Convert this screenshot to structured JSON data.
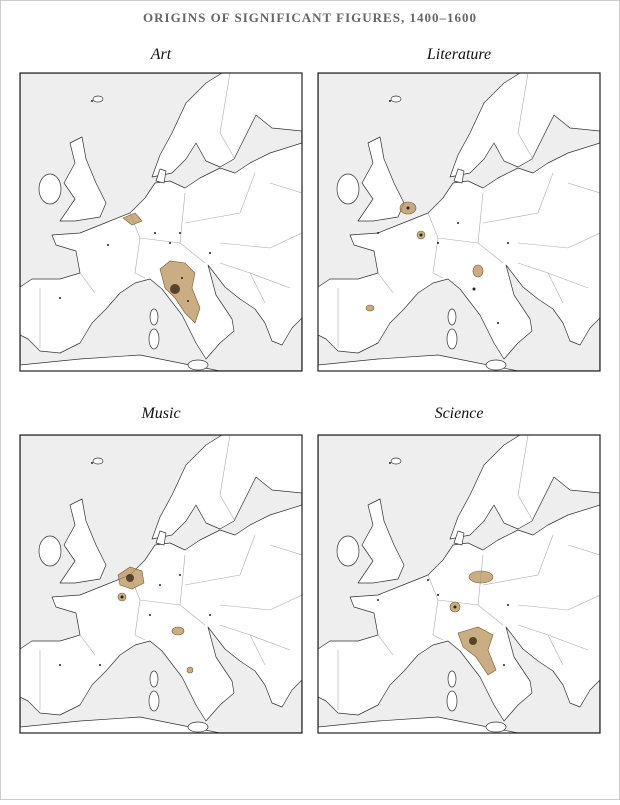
{
  "title": "ORIGINS OF SIGNIFICANT FIGURES, 1400–1600",
  "panels": [
    {
      "title": "Art"
    },
    {
      "title": "Literature"
    },
    {
      "title": "Music"
    },
    {
      "title": "Science"
    }
  ]
}
